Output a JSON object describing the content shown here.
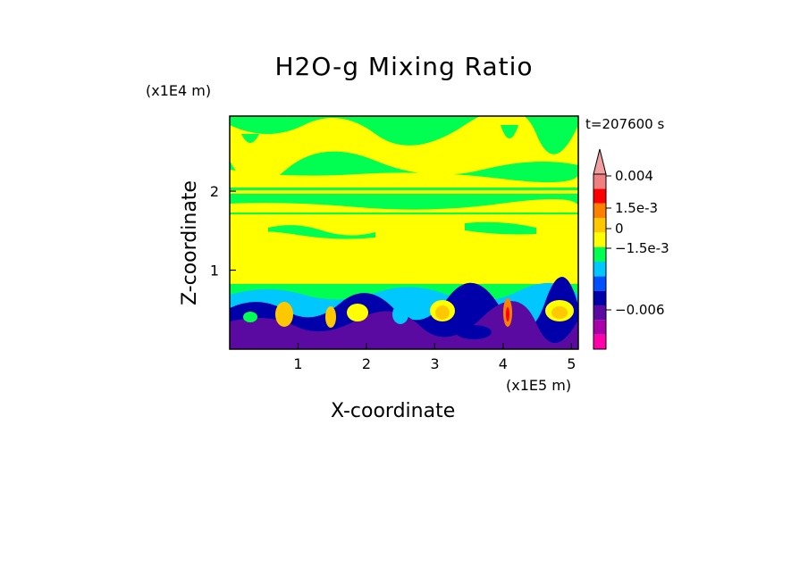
{
  "chart_data": {
    "type": "heatmap",
    "title": "H2O-g Mixing Ratio",
    "xlabel": "X-coordinate",
    "ylabel": "Z-coordinate",
    "x_unit_label": "(x1E5 m)",
    "y_unit_label": "(x1E4 m)",
    "time_label": "t=207600 s",
    "xlim": [
      0,
      5.1
    ],
    "ylim": [
      0,
      2.95
    ],
    "x_ticks": [
      "1",
      "2",
      "3",
      "4",
      "5"
    ],
    "y_ticks": [
      "1",
      "2"
    ],
    "colorbar": {
      "colors": [
        "#ff00aa",
        "#aa00aa",
        "#5a0aa0",
        "#0000aa",
        "#0050ff",
        "#00c8ff",
        "#00ff50",
        "#ffff00",
        "#ffc800",
        "#ff8000",
        "#ff0000",
        "#f08080",
        "#f0a0a0"
      ],
      "labels": [
        "0.004",
        "1.5e-3",
        "0",
        "−1.5e-3",
        "−0.006"
      ],
      "label_values": [
        0.004,
        0.0015,
        0,
        -0.0015,
        -0.006
      ],
      "extend": "max"
    },
    "layers": [
      {
        "z_from": 0.0,
        "z_to": 0.35,
        "value": "purple (about -0.005)"
      },
      {
        "z_from": 0.35,
        "z_to": 0.9,
        "value": "blue / cyan (about -0.0015 to -0.001)"
      },
      {
        "z_from": 0.9,
        "z_to": 1.6,
        "value": "yellow (about 0.0005)"
      },
      {
        "z_from": 1.6,
        "z_to": 2.95,
        "value": "green and yellow bands (about 0)"
      }
    ]
  }
}
